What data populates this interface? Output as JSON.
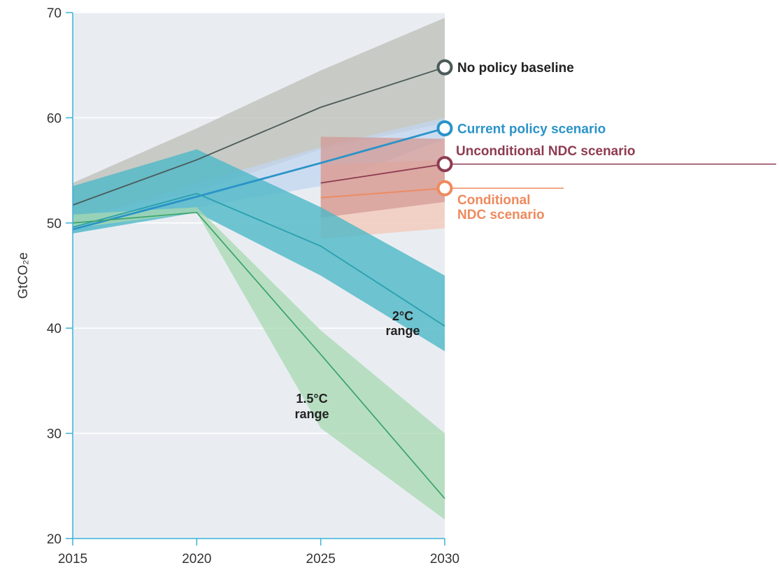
{
  "chart_data": {
    "type": "line",
    "ylabel": "GtCO₂e",
    "xlabel": "",
    "x": [
      2015,
      2020,
      2025,
      2030
    ],
    "xticks": [
      "2015",
      "2020",
      "2025",
      "2030"
    ],
    "yticks": [
      "20",
      "30",
      "40",
      "50",
      "60",
      "70"
    ],
    "ylim": [
      20,
      70
    ],
    "xlim": [
      2015,
      2030
    ],
    "grid": true,
    "series": [
      {
        "name": "No policy baseline",
        "color": "#4a5a58",
        "band_color": "#bcbdb6",
        "x": [
          2015,
          2020,
          2025,
          2030
        ],
        "values": [
          51.7,
          56.0,
          61.0,
          64.8
        ],
        "band_low": [
          50.5,
          53.0,
          57.0,
          59.5
        ],
        "band_high": [
          53.8,
          59.0,
          64.5,
          69.5
        ],
        "marker": true
      },
      {
        "name": "Current policy scenario",
        "color": "#2a93c8",
        "band_color": "#c2d6ef",
        "x": [
          2015,
          2020,
          2025,
          2030
        ],
        "values": [
          49.4,
          52.5,
          55.7,
          59.0
        ],
        "band_low": [
          49.0,
          51.5,
          53.5,
          58.0
        ],
        "band_high": [
          50.2,
          53.8,
          57.2,
          60.0
        ],
        "marker": true
      },
      {
        "name": "Unconditional NDC scenario",
        "color": "#8e3b52",
        "band_color": "#d39a96",
        "x": [
          2025,
          2030
        ],
        "values": [
          53.8,
          55.6
        ],
        "band_low": [
          50.5,
          52.0
        ],
        "band_high": [
          58.2,
          58.0
        ],
        "marker": true
      },
      {
        "name": "Conditional NDC scenario",
        "label_lines": [
          "Conditional",
          "NDC scenario"
        ],
        "color": "#ee8a5e",
        "band_color": "#f3c7b6",
        "x": [
          2025,
          2030
        ],
        "values": [
          52.4,
          53.3
        ],
        "band_low": [
          48.5,
          49.5
        ],
        "band_high": [
          55.5,
          56.0
        ],
        "marker": true
      },
      {
        "name": "2°C range",
        "label_lines": [
          "2°C",
          "range"
        ],
        "color": "#2aa0ae",
        "band_color": "#4eb8c7",
        "x": [
          2015,
          2020,
          2025,
          2030
        ],
        "values": [
          49.6,
          52.8,
          47.8,
          40.2
        ],
        "band_low": [
          49.0,
          51.0,
          45.0,
          37.8
        ],
        "band_high": [
          53.5,
          57.0,
          51.5,
          45.0
        ],
        "marker": false
      },
      {
        "name": "1.5°C range",
        "label_lines": [
          "1.5°C",
          "range"
        ],
        "color": "#3ea570",
        "band_color": "#a7d8b0",
        "x": [
          2015,
          2020,
          2025,
          2030
        ],
        "values": [
          50.0,
          51.0,
          37.5,
          23.8
        ],
        "band_low": [
          49.5,
          51.0,
          30.5,
          21.8
        ],
        "band_high": [
          50.8,
          51.5,
          39.8,
          30.0
        ],
        "marker": false
      }
    ]
  }
}
